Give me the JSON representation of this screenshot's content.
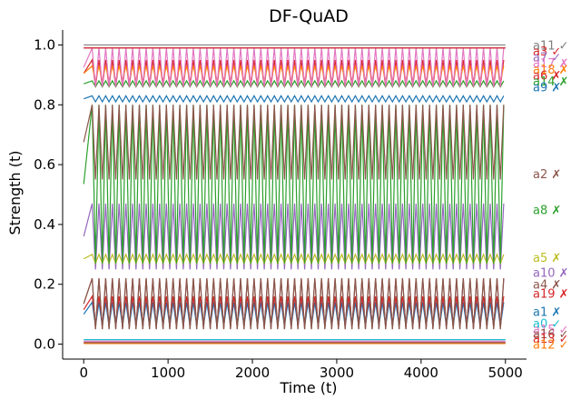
{
  "chart_data": {
    "type": "line",
    "title": "DF-QuAD",
    "xlabel": "Time (t)",
    "ylabel": "Strength (t)",
    "xlim": [
      -250,
      5250
    ],
    "ylim": [
      -0.05,
      1.05
    ],
    "xticks": [
      0,
      1000,
      2000,
      3000,
      4000,
      5000
    ],
    "yticks": [
      0.0,
      0.2,
      0.4,
      0.6,
      0.8,
      1.0
    ],
    "grid": false,
    "series": [
      {
        "name": "a11",
        "mark": "✓",
        "color": "#7f7f7f",
        "bands": [
          [
            1.0,
            1.0
          ]
        ],
        "final": 1.0
      },
      {
        "name": "a3",
        "mark": "✓",
        "color": "#d62728",
        "bands": [
          [
            0.99,
            0.99
          ]
        ],
        "final": 0.98
      },
      {
        "name": "a7",
        "mark": "✓",
        "color": "#9467bd",
        "bands": [
          [
            0.99,
            0.99
          ]
        ],
        "final": 0.96
      },
      {
        "name": "a17",
        "mark": "✗",
        "color": "#e377c2",
        "bands": [
          [
            0.86,
            0.99
          ]
        ],
        "final": 0.94
      },
      {
        "name": "a18",
        "mark": "✗",
        "color": "#ff7f0e",
        "bands": [
          [
            0.88,
            0.93
          ]
        ],
        "final": 0.92
      },
      {
        "name": "a6",
        "mark": "✗",
        "color": "#d62728",
        "bands": [
          [
            0.86,
            0.95
          ]
        ],
        "final": 0.9
      },
      {
        "name": "a14",
        "mark": "✗",
        "color": "#2ca02c",
        "bands": [
          [
            0.86,
            0.88
          ]
        ],
        "final": 0.88
      },
      {
        "name": "a9",
        "mark": "✗",
        "color": "#1f77b4",
        "bands": [
          [
            0.81,
            0.83
          ]
        ],
        "final": 0.86
      },
      {
        "name": "a2",
        "mark": "✗",
        "color": "#8c564b",
        "bands": [
          [
            0.55,
            0.8
          ],
          [
            0.05,
            0.22
          ]
        ],
        "final": 0.57
      },
      {
        "name": "a8",
        "mark": "✗",
        "color": "#2ca02c",
        "bands": [
          [
            0.27,
            0.8
          ]
        ],
        "final": 0.45
      },
      {
        "name": "a5",
        "mark": "✗",
        "color": "#bcbd22",
        "bands": [
          [
            0.27,
            0.3
          ]
        ],
        "final": 0.29
      },
      {
        "name": "a10",
        "mark": "✗",
        "color": "#9467bd",
        "bands": [
          [
            0.25,
            0.47
          ]
        ],
        "final": 0.24
      },
      {
        "name": "a4",
        "mark": "✗",
        "color": "#8c564b",
        "bands": [
          [
            0.05,
            0.22
          ]
        ],
        "final": 0.2
      },
      {
        "name": "a19",
        "mark": "✗",
        "color": "#d62728",
        "bands": [
          [
            0.07,
            0.16
          ]
        ],
        "final": 0.17
      },
      {
        "name": "a1",
        "mark": "✗",
        "color": "#1f77b4",
        "bands": [
          [
            0.06,
            0.14
          ]
        ],
        "final": 0.11
      },
      {
        "name": "a0",
        "mark": "✓",
        "color": "#17becf",
        "bands": [
          [
            0.015,
            0.015
          ]
        ],
        "final": 0.07
      },
      {
        "name": "a15",
        "mark": "✓",
        "color": "#e377c2",
        "bands": [
          [
            0.01,
            0.01
          ]
        ],
        "final": 0.05
      },
      {
        "name": "a16",
        "mark": "✓",
        "color": "#8c564b",
        "bands": [
          [
            0.005,
            0.005
          ]
        ],
        "final": 0.035
      },
      {
        "name": "a13",
        "mark": "✓",
        "color": "#d62728",
        "bands": [
          [
            0.005,
            0.005
          ]
        ],
        "final": 0.02
      },
      {
        "name": "a12",
        "mark": "✓",
        "color": "#ff7f0e",
        "bands": [
          [
            0.002,
            0.002
          ]
        ],
        "final": 0.0
      }
    ]
  }
}
